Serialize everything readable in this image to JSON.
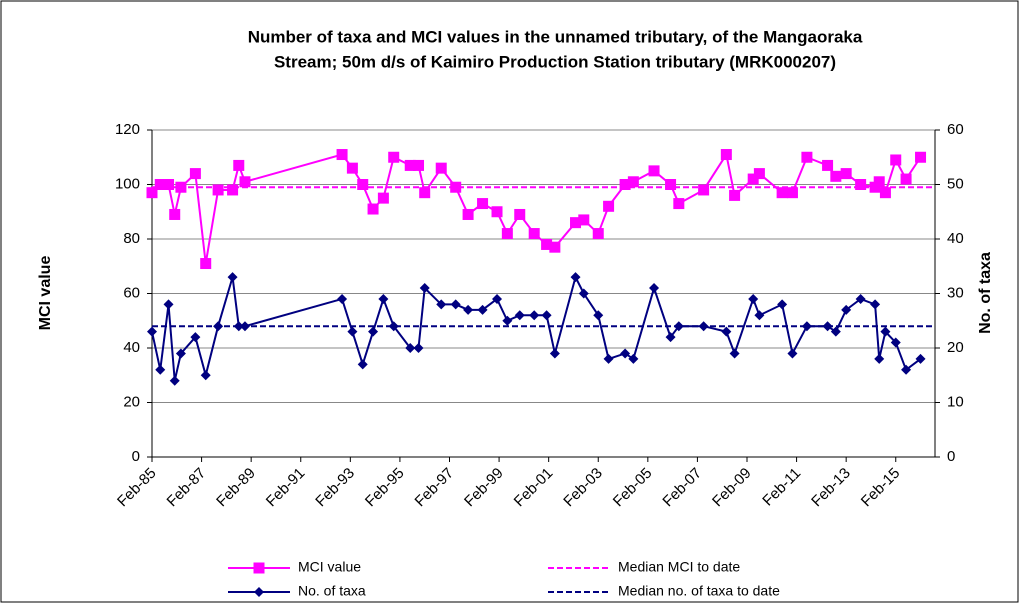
{
  "chart_data": {
    "type": "line",
    "title": [
      "Number of taxa and MCI values in the unnamed tributary, of the Mangaoraka",
      "Stream;  50m d/s of Kaimiro Production Station tributary (MRK000207)"
    ],
    "y_label": "MCI value",
    "y2_label": "No. of taxa",
    "x": [
      "Feb-85",
      "Jun-85",
      "Oct-85",
      "Jan-86",
      "Apr-86",
      "Nov-86",
      "Apr-87",
      "Oct-87",
      "May-88",
      "Aug-88",
      "Nov-88",
      "Oct-92",
      "Mar-93",
      "Aug-93",
      "Jan-94",
      "Jun-94",
      "Nov-94",
      "Jul-95",
      "Nov-95",
      "Feb-96",
      "Oct-96",
      "May-97",
      "Nov-97",
      "Jun-98",
      "Jan-99",
      "Jun-99",
      "Dec-99",
      "Jul-00",
      "Jan-01",
      "May-01",
      "Mar-02",
      "Jul-02",
      "Feb-03",
      "Jul-03",
      "Mar-04",
      "Jul-04",
      "May-05",
      "Jan-06",
      "May-06",
      "May-07",
      "Apr-08",
      "Aug-08",
      "May-09",
      "Aug-09",
      "Jul-10",
      "Dec-10",
      "Jul-11",
      "May-12",
      "Sep-12",
      "Feb-13",
      "Sep-13",
      "Apr-14",
      "Jun-14",
      "Sep-14",
      "Feb-15",
      "Jul-15",
      "Feb-16"
    ],
    "xlim": [
      "Feb-85",
      "Sep-16"
    ],
    "xticks": [
      "Feb-85",
      "Feb-87",
      "Feb-89",
      "Feb-91",
      "Feb-93",
      "Feb-95",
      "Feb-97",
      "Feb-99",
      "Feb-01",
      "Feb-03",
      "Feb-05",
      "Feb-07",
      "Feb-09",
      "Feb-11",
      "Feb-13",
      "Feb-15"
    ],
    "ylim": [
      0,
      120
    ],
    "yticks": [
      0,
      20,
      40,
      60,
      80,
      100,
      120
    ],
    "y2lim": [
      0,
      60
    ],
    "y2ticks": [
      0,
      10,
      20,
      30,
      40,
      50,
      60
    ],
    "grid": true,
    "series": [
      {
        "name": "MCI value",
        "color": "#ff00ff",
        "marker": "square",
        "axis": "y",
        "values": [
          97,
          100,
          100,
          89,
          99,
          104,
          71,
          98,
          98,
          107,
          101,
          111,
          106,
          100,
          91,
          95,
          110,
          107,
          107,
          97,
          106,
          99,
          89,
          93,
          90,
          82,
          89,
          82,
          78,
          77,
          86,
          87,
          82,
          92,
          100,
          101,
          105,
          100,
          93,
          98,
          111,
          96,
          102,
          104,
          97,
          97,
          110,
          107,
          103,
          104,
          100,
          99,
          101,
          97,
          109,
          102,
          110
        ]
      },
      {
        "name": "No. of taxa",
        "color": "#000080",
        "marker": "diamond",
        "axis": "y2",
        "values": [
          23,
          16,
          28,
          14,
          19,
          22,
          15,
          24,
          33,
          24,
          24,
          29,
          23,
          17,
          23,
          29,
          24,
          20,
          20,
          31,
          28,
          28,
          27,
          27,
          29,
          25,
          26,
          26,
          26,
          19,
          33,
          30,
          26,
          18,
          19,
          18,
          31,
          22,
          24,
          24,
          23,
          19,
          29,
          26,
          28,
          19,
          24,
          24,
          23,
          27,
          29,
          28,
          18,
          23,
          21,
          16,
          18
        ]
      }
    ],
    "reference_lines": [
      {
        "name": "Median MCI to date",
        "value": 99,
        "axis": "y",
        "color": "#ff00ff"
      },
      {
        "name": "Median no. of taxa to date",
        "value": 24,
        "axis": "y2",
        "color": "#000080"
      }
    ]
  }
}
